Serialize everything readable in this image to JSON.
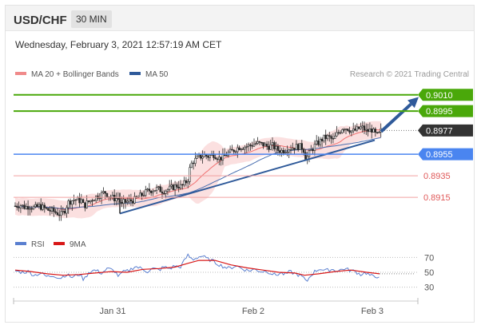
{
  "header": {
    "symbol": "USD/CHF",
    "timeframe": "30 MIN",
    "datetime": "Wednesday, February 3, 2021 12:57:19 AM CET"
  },
  "legend": {
    "ma20_bb": "MA 20 + Bollinger Bands",
    "ma50": "MA 50",
    "credit": "Research © 2021 Trading Central",
    "rsi": "RSI",
    "rsi_ma": "9MA"
  },
  "colors": {
    "resistance": "#4aa80a",
    "support": "#4a85f0",
    "secondary": "#e05a5a",
    "current": "#333333",
    "arrow": "#2f5a9a",
    "candle": "#2a2a2a",
    "bb_fill": "#fbe0e0",
    "ma20": "#f07070",
    "ma50": "#4a6fb0",
    "rsi": "#5a7fd0",
    "rsi_ma": "#d81818"
  },
  "chart_data": {
    "type": "candlestick",
    "y_range": [
      0.8887,
      0.9018
    ],
    "x_ticks": [
      "Jan 31",
      "Feb 2",
      "Feb 3"
    ],
    "levels": [
      {
        "label": "0.9010",
        "value": 0.901,
        "kind": "resistance"
      },
      {
        "label": "0.8995",
        "value": 0.8995,
        "kind": "resistance"
      },
      {
        "label": "0.8977",
        "value": 0.8977,
        "kind": "current"
      },
      {
        "label": "0.8955",
        "value": 0.8955,
        "kind": "support"
      },
      {
        "label": "0.8935",
        "value": 0.8935,
        "kind": "secondary"
      },
      {
        "label": "0.8915",
        "value": 0.8915,
        "kind": "secondary"
      }
    ],
    "price_path": [
      [
        0,
        0.8907
      ],
      [
        6,
        0.8908
      ],
      [
        12,
        0.8906
      ],
      [
        18,
        0.8907
      ],
      [
        24,
        0.8905
      ],
      [
        30,
        0.8907
      ],
      [
        36,
        0.8905
      ],
      [
        42,
        0.8903
      ],
      [
        48,
        0.8902
      ],
      [
        54,
        0.89
      ],
      [
        58,
        0.8899
      ],
      [
        62,
        0.8903
      ],
      [
        66,
        0.891
      ],
      [
        70,
        0.8912
      ],
      [
        76,
        0.8913
      ],
      [
        80,
        0.8912
      ],
      [
        84,
        0.8912
      ],
      [
        86,
        0.8905
      ],
      [
        88,
        0.8909
      ],
      [
        92,
        0.8911
      ],
      [
        96,
        0.8913
      ],
      [
        102,
        0.8916
      ],
      [
        108,
        0.8918
      ],
      [
        112,
        0.892
      ],
      [
        118,
        0.8916
      ],
      [
        124,
        0.8914
      ],
      [
        128,
        0.8914
      ],
      [
        131,
        0.8912
      ],
      [
        132,
        0.8902
      ],
      [
        134,
        0.891
      ],
      [
        140,
        0.8911
      ],
      [
        146,
        0.8912
      ],
      [
        150,
        0.8913
      ],
      [
        156,
        0.8916
      ],
      [
        160,
        0.8918
      ],
      [
        166,
        0.8921
      ],
      [
        172,
        0.8922
      ],
      [
        178,
        0.8923
      ],
      [
        184,
        0.8921
      ],
      [
        190,
        0.8922
      ],
      [
        196,
        0.8924
      ],
      [
        202,
        0.8926
      ],
      [
        208,
        0.8925
      ],
      [
        212,
        0.8928
      ],
      [
        216,
        0.8931
      ],
      [
        218,
        0.894
      ],
      [
        220,
        0.8945
      ],
      [
        222,
        0.8948
      ],
      [
        226,
        0.895
      ],
      [
        230,
        0.8952
      ],
      [
        236,
        0.8954
      ],
      [
        242,
        0.8953
      ],
      [
        248,
        0.8955
      ],
      [
        252,
        0.8953
      ],
      [
        256,
        0.8951
      ],
      [
        262,
        0.8953
      ],
      [
        266,
        0.8956
      ],
      [
        270,
        0.8957
      ],
      [
        276,
        0.896
      ],
      [
        282,
        0.8962
      ],
      [
        288,
        0.8962
      ],
      [
        294,
        0.8963
      ],
      [
        300,
        0.8965
      ],
      [
        304,
        0.8965
      ],
      [
        310,
        0.8964
      ],
      [
        316,
        0.8962
      ],
      [
        322,
        0.8963
      ],
      [
        328,
        0.8959
      ],
      [
        334,
        0.8958
      ],
      [
        340,
        0.896
      ],
      [
        346,
        0.8961
      ],
      [
        352,
        0.8962
      ],
      [
        358,
        0.8962
      ],
      [
        362,
        0.8958
      ],
      [
        364,
        0.895
      ],
      [
        366,
        0.8953
      ],
      [
        370,
        0.8958
      ],
      [
        376,
        0.8964
      ],
      [
        380,
        0.8966
      ],
      [
        386,
        0.897
      ],
      [
        392,
        0.8971
      ],
      [
        398,
        0.8968
      ],
      [
        402,
        0.8973
      ],
      [
        406,
        0.8976
      ],
      [
        410,
        0.898
      ],
      [
        416,
        0.8979
      ],
      [
        422,
        0.8976
      ],
      [
        428,
        0.8978
      ],
      [
        434,
        0.898
      ],
      [
        440,
        0.8976
      ],
      [
        446,
        0.8978
      ],
      [
        450,
        0.8974
      ],
      [
        454,
        0.8972
      ],
      [
        458,
        0.8977
      ]
    ],
    "trend_line": [
      [
        131,
        0.89
      ],
      [
        450,
        0.8968
      ]
    ],
    "arrow": [
      [
        458,
        0.8976
      ],
      [
        505,
        0.9008
      ]
    ],
    "rsi": {
      "y_range": [
        20,
        80
      ],
      "ticks": [
        70,
        50,
        30
      ],
      "path": [
        [
          0,
          52
        ],
        [
          8,
          50
        ],
        [
          16,
          51
        ],
        [
          24,
          46
        ],
        [
          32,
          49
        ],
        [
          40,
          44
        ],
        [
          48,
          46
        ],
        [
          56,
          42
        ],
        [
          64,
          47
        ],
        [
          72,
          43
        ],
        [
          80,
          48
        ],
        [
          86,
          40
        ],
        [
          92,
          50
        ],
        [
          100,
          53
        ],
        [
          108,
          49
        ],
        [
          116,
          55
        ],
        [
          124,
          52
        ],
        [
          130,
          44
        ],
        [
          134,
          50
        ],
        [
          142,
          52
        ],
        [
          150,
          58
        ],
        [
          158,
          55
        ],
        [
          166,
          51
        ],
        [
          172,
          55
        ],
        [
          180,
          53
        ],
        [
          186,
          57
        ],
        [
          194,
          55
        ],
        [
          200,
          59
        ],
        [
          206,
          56
        ],
        [
          212,
          66
        ],
        [
          216,
          73
        ],
        [
          222,
          67
        ],
        [
          228,
          70
        ],
        [
          234,
          72
        ],
        [
          240,
          68
        ],
        [
          246,
          66
        ],
        [
          254,
          61
        ],
        [
          260,
          58
        ],
        [
          268,
          55
        ],
        [
          276,
          59
        ],
        [
          284,
          55
        ],
        [
          292,
          52
        ],
        [
          300,
          54
        ],
        [
          308,
          51
        ],
        [
          314,
          52
        ],
        [
          320,
          49
        ],
        [
          326,
          46
        ],
        [
          332,
          49
        ],
        [
          338,
          47
        ],
        [
          344,
          51
        ],
        [
          350,
          48
        ],
        [
          356,
          46
        ],
        [
          362,
          42
        ],
        [
          364,
          36
        ],
        [
          370,
          46
        ],
        [
          376,
          52
        ],
        [
          382,
          55
        ],
        [
          388,
          52
        ],
        [
          396,
          54
        ],
        [
          404,
          52
        ],
        [
          412,
          55
        ],
        [
          418,
          53
        ],
        [
          426,
          51
        ],
        [
          432,
          47
        ],
        [
          438,
          50
        ],
        [
          444,
          46
        ],
        [
          450,
          43
        ],
        [
          456,
          46
        ]
      ],
      "ma_path": [
        [
          0,
          53
        ],
        [
          20,
          51
        ],
        [
          40,
          48
        ],
        [
          60,
          46
        ],
        [
          80,
          47
        ],
        [
          100,
          49
        ],
        [
          120,
          51
        ],
        [
          140,
          50
        ],
        [
          160,
          54
        ],
        [
          180,
          55
        ],
        [
          200,
          57
        ],
        [
          216,
          62
        ],
        [
          230,
          66
        ],
        [
          250,
          66
        ],
        [
          270,
          60
        ],
        [
          290,
          56
        ],
        [
          310,
          53
        ],
        [
          330,
          50
        ],
        [
          350,
          49
        ],
        [
          362,
          46
        ],
        [
          380,
          48
        ],
        [
          400,
          51
        ],
        [
          420,
          53
        ],
        [
          440,
          50
        ],
        [
          456,
          48
        ]
      ]
    }
  }
}
